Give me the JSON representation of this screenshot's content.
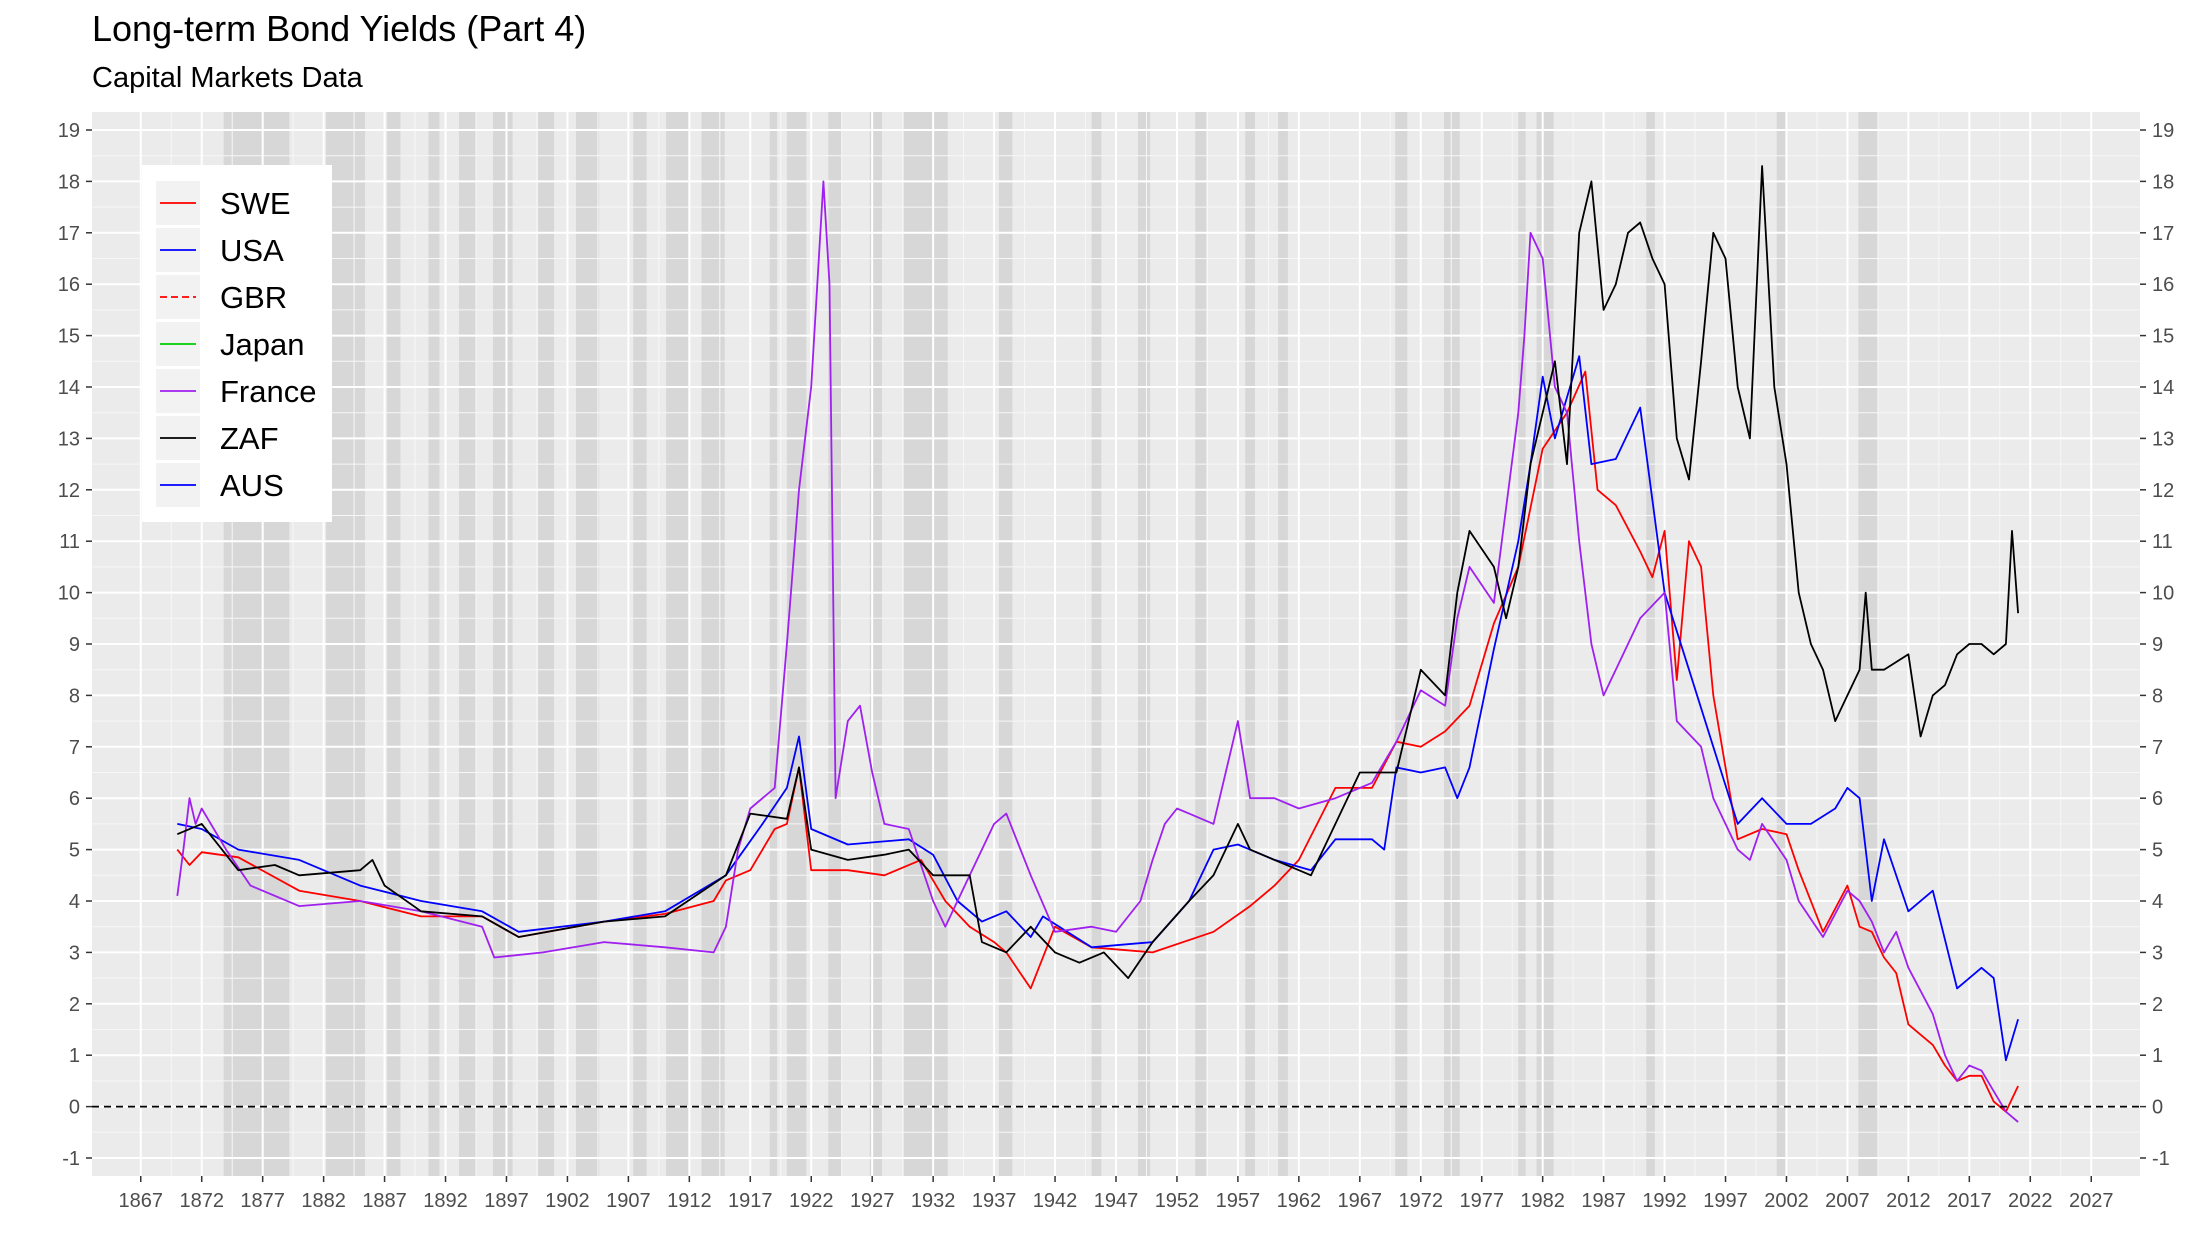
{
  "chart_data": {
    "type": "line",
    "title": "Long-term Bond Yields (Part 4)",
    "subtitle": "Capital Markets Data",
    "xlabel": "",
    "ylabel": "",
    "xlim": [
      1863,
      2031
    ],
    "ylim": [
      -1.35,
      19.35
    ],
    "x_ticks": [
      1867,
      1872,
      1877,
      1882,
      1887,
      1892,
      1897,
      1902,
      1907,
      1912,
      1917,
      1922,
      1927,
      1932,
      1937,
      1942,
      1947,
      1952,
      1957,
      1962,
      1967,
      1972,
      1977,
      1982,
      1987,
      1992,
      1997,
      2002,
      2007,
      2012,
      2017,
      2022,
      2027
    ],
    "y_ticks": [
      -1,
      0,
      1,
      2,
      3,
      4,
      5,
      6,
      7,
      8,
      9,
      10,
      11,
      12,
      13,
      14,
      15,
      16,
      17,
      18,
      19
    ],
    "y_axis_right": true,
    "grid": true,
    "legend_position": "top-left",
    "reference_line": {
      "y": 0,
      "style": "dashed",
      "color": "#000000"
    },
    "recession_bands": [
      [
        1873.8,
        1879.2
      ],
      [
        1882.2,
        1885.4
      ],
      [
        1887.2,
        1888.3
      ],
      [
        1890.6,
        1891.5
      ],
      [
        1893.1,
        1894.5
      ],
      [
        1895.9,
        1897.5
      ],
      [
        1899.6,
        1900.9
      ],
      [
        1902.7,
        1904.6
      ],
      [
        1907.4,
        1908.5
      ],
      [
        1910.1,
        1912.0
      ],
      [
        1913.0,
        1914.9
      ],
      [
        1918.6,
        1919.2
      ],
      [
        1920.0,
        1921.6
      ],
      [
        1923.4,
        1924.5
      ],
      [
        1926.8,
        1927.8
      ],
      [
        1929.6,
        1933.2
      ],
      [
        1937.4,
        1938.5
      ],
      [
        1945.0,
        1945.8
      ],
      [
        1948.8,
        1949.8
      ],
      [
        1953.5,
        1954.4
      ],
      [
        1957.6,
        1958.4
      ],
      [
        1960.3,
        1961.1
      ],
      [
        1969.9,
        1970.9
      ],
      [
        1973.9,
        1975.2
      ],
      [
        1980.0,
        1980.6
      ],
      [
        1981.5,
        1982.9
      ],
      [
        1990.5,
        1991.2
      ],
      [
        2001.2,
        2001.9
      ],
      [
        2007.9,
        2009.5
      ]
    ],
    "series": [
      {
        "name": "SWE",
        "color": "#ff0000",
        "dash": "solid",
        "x": [
          1870.0,
          1871.0,
          1872.0,
          1875.0,
          1880.0,
          1885.0,
          1890.0,
          1895.0,
          1898.0,
          1905.0,
          1910.0,
          1914.0,
          1915.0,
          1917.0,
          1918.0,
          1919.0,
          1920.0,
          1921.0,
          1922.0,
          1925.0,
          1928.0,
          1931.0,
          1933.0,
          1935.0,
          1937.0,
          1938.0,
          1940.0,
          1942.0,
          1945.0,
          1950.0,
          1955.0,
          1958.0,
          1960.0,
          1962.0,
          1965.0,
          1968.0,
          1970.0,
          1972.0,
          1974.0,
          1976.0,
          1978.0,
          1980.0,
          1982.0,
          1984.0,
          1985.5,
          1986.5,
          1988.0,
          1990.0,
          1991.0,
          1992.0,
          1993.0,
          1994.0,
          1995.0,
          1996.0,
          1998.0,
          2000.0,
          2002.0,
          2003.0,
          2005.0,
          2007.0,
          2008.0,
          2009.0,
          2010.0,
          2011.0,
          2012.0,
          2014.0,
          2015.0,
          2016.0,
          2017.0,
          2018.0,
          2019.0,
          2020.0,
          2021.0
        ],
        "y": [
          5.0,
          4.7,
          4.95,
          4.85,
          4.2,
          4.0,
          3.7,
          3.7,
          3.3,
          3.6,
          3.75,
          4.0,
          4.4,
          4.6,
          5.0,
          5.4,
          5.5,
          6.6,
          4.6,
          4.6,
          4.5,
          4.8,
          4.0,
          3.5,
          3.2,
          3.0,
          2.3,
          3.5,
          3.1,
          3.0,
          3.4,
          3.9,
          4.3,
          4.8,
          6.2,
          6.2,
          7.1,
          7.0,
          7.3,
          7.8,
          9.4,
          10.5,
          12.8,
          13.5,
          14.3,
          12.0,
          11.7,
          10.8,
          10.3,
          11.2,
          8.3,
          11.0,
          10.5,
          8.0,
          5.2,
          5.4,
          5.3,
          4.6,
          3.4,
          4.3,
          3.5,
          3.4,
          2.9,
          2.6,
          1.6,
          1.2,
          0.8,
          0.5,
          0.6,
          0.6,
          0.1,
          -0.1,
          0.4
        ]
      },
      {
        "name": "USA",
        "color": "#0000ff",
        "dash": "solid",
        "x": [
          1870.0,
          1872.0,
          1875.0,
          1880.0,
          1885.0,
          1890.0,
          1895.0,
          1898.0,
          1905.0,
          1910.0,
          1915.0,
          1918.0,
          1920.0,
          1921.0,
          1922.0,
          1925.0,
          1930.0,
          1932.0,
          1934.0,
          1936.0,
          1938.0,
          1940.0,
          1941.0,
          1945.0,
          1950.0,
          1953.0,
          1955.0,
          1957.0,
          1960.0,
          1963.0,
          1965.0,
          1968.0,
          1969.0,
          1970.0,
          1972.0,
          1974.0,
          1975.0,
          1976.0,
          1978.0,
          1980.0,
          1981.0,
          1982.0,
          1983.0,
          1984.0,
          1985.0,
          1986.0,
          1988.0,
          1990.0,
          1992.0,
          1994.0,
          1996.0,
          1998.0,
          2000.0,
          2002.0,
          2004.0,
          2006.0,
          2007.0,
          2008.0,
          2009.0,
          2010.0,
          2012.0,
          2014.0,
          2016.0,
          2018.0,
          2019.0,
          2020.0,
          2021.0
        ],
        "y": [
          5.5,
          5.4,
          5.0,
          4.8,
          4.3,
          4.0,
          3.8,
          3.4,
          3.6,
          3.8,
          4.5,
          5.5,
          6.2,
          7.2,
          5.4,
          5.1,
          5.2,
          4.9,
          4.0,
          3.6,
          3.8,
          3.3,
          3.7,
          3.1,
          3.2,
          4.0,
          5.0,
          5.1,
          4.8,
          4.6,
          5.2,
          5.2,
          5.0,
          6.6,
          6.5,
          6.6,
          6.0,
          6.6,
          8.9,
          11.0,
          12.5,
          14.2,
          13.0,
          13.8,
          14.6,
          12.5,
          12.6,
          13.6,
          10.0,
          8.5,
          7.0,
          5.5,
          6.0,
          5.5,
          5.5,
          5.8,
          6.2,
          6.0,
          4.0,
          5.2,
          3.8,
          4.2,
          2.3,
          2.7,
          2.5,
          0.9,
          1.7
        ]
      },
      {
        "name": "GBR",
        "color": "#ff0000",
        "dash": "dashed",
        "x": [],
        "y": []
      },
      {
        "name": "Japan",
        "color": "#00cd00",
        "dash": "solid",
        "x": [],
        "y": []
      },
      {
        "name": "France",
        "color": "#a020f0",
        "dash": "solid",
        "x": [
          1870.0,
          1870.5,
          1871.0,
          1871.5,
          1872.0,
          1874.0,
          1876.0,
          1880.0,
          1885.0,
          1890.0,
          1895.0,
          1896.0,
          1900.0,
          1905.0,
          1910.0,
          1914.0,
          1915.0,
          1916.0,
          1917.0,
          1918.0,
          1919.0,
          1920.0,
          1921.0,
          1922.0,
          1923.0,
          1923.5,
          1924.0,
          1925.0,
          1926.0,
          1927.0,
          1928.0,
          1930.0,
          1932.0,
          1933.0,
          1935.0,
          1937.0,
          1938.0,
          1940.0,
          1942.0,
          1945.0,
          1947.0,
          1949.0,
          1950.0,
          1951.0,
          1952.0,
          1953.0,
          1955.0,
          1956.0,
          1957.0,
          1958.0,
          1960.0,
          1962.0,
          1965.0,
          1968.0,
          1970.0,
          1972.0,
          1974.0,
          1975.0,
          1976.0,
          1978.0,
          1980.0,
          1980.5,
          1981.0,
          1982.0,
          1983.0,
          1984.0,
          1985.0,
          1986.0,
          1987.0,
          1988.0,
          1990.0,
          1992.0,
          1993.0,
          1995.0,
          1996.0,
          1998.0,
          1999.0,
          2000.0,
          2002.0,
          2003.0,
          2005.0,
          2007.0,
          2008.0,
          2009.0,
          2010.0,
          2011.0,
          2012.0,
          2014.0,
          2015.0,
          2016.0,
          2017.0,
          2018.0,
          2019.0,
          2020.0,
          2021.0
        ],
        "y": [
          4.1,
          5.0,
          6.0,
          5.5,
          5.8,
          5.0,
          4.3,
          3.9,
          4.0,
          3.8,
          3.5,
          2.9,
          3.0,
          3.2,
          3.1,
          3.0,
          3.5,
          5.0,
          5.8,
          6.0,
          6.2,
          9.0,
          12.0,
          14.0,
          18.0,
          16.0,
          6.0,
          7.5,
          7.8,
          6.5,
          5.5,
          5.4,
          4.0,
          3.5,
          4.5,
          5.5,
          5.7,
          4.5,
          3.4,
          3.5,
          3.4,
          4.0,
          4.8,
          5.5,
          5.8,
          5.7,
          5.5,
          6.5,
          7.5,
          6.0,
          6.0,
          5.8,
          6.0,
          6.3,
          7.1,
          8.1,
          7.8,
          9.5,
          10.5,
          9.8,
          13.5,
          15.0,
          17.0,
          16.5,
          14.0,
          13.5,
          11.0,
          9.0,
          8.0,
          8.5,
          9.5,
          10.0,
          7.5,
          7.0,
          6.0,
          5.0,
          4.8,
          5.5,
          4.8,
          4.0,
          3.3,
          4.2,
          4.0,
          3.6,
          3.0,
          3.4,
          2.7,
          1.8,
          1.0,
          0.5,
          0.8,
          0.7,
          0.3,
          -0.1,
          -0.3
        ]
      },
      {
        "name": "ZAF",
        "color": "#000000",
        "dash": "solid",
        "x": [
          1870.0,
          1872.0,
          1875.0,
          1878.0,
          1880.0,
          1885.0,
          1886.0,
          1887.0,
          1890.0,
          1895.0,
          1898.0,
          1905.0,
          1910.0,
          1915.0,
          1917.0,
          1920.0,
          1921.0,
          1922.0,
          1925.0,
          1928.0,
          1930.0,
          1932.0,
          1935.0,
          1936.0,
          1938.0,
          1940.0,
          1942.0,
          1944.0,
          1946.0,
          1948.0,
          1950.0,
          1953.0,
          1955.0,
          1957.0,
          1958.0,
          1960.0,
          1963.0,
          1965.0,
          1967.0,
          1970.0,
          1972.0,
          1974.0,
          1975.0,
          1976.0,
          1978.0,
          1979.0,
          1980.0,
          1981.0,
          1982.0,
          1983.0,
          1984.0,
          1985.0,
          1986.0,
          1987.0,
          1988.0,
          1989.0,
          1990.0,
          1991.0,
          1992.0,
          1993.0,
          1994.0,
          1995.0,
          1996.0,
          1997.0,
          1998.0,
          1999.0,
          2000.0,
          2001.0,
          2002.0,
          2003.0,
          2004.0,
          2005.0,
          2006.0,
          2007.0,
          2008.0,
          2008.5,
          2009.0,
          2010.0,
          2012.0,
          2013.0,
          2014.0,
          2015.0,
          2016.0,
          2017.0,
          2018.0,
          2019.0,
          2020.0,
          2020.5,
          2021.0
        ],
        "y": [
          5.3,
          5.5,
          4.6,
          4.7,
          4.5,
          4.6,
          4.8,
          4.3,
          3.8,
          3.7,
          3.3,
          3.6,
          3.7,
          4.5,
          5.7,
          5.6,
          6.6,
          5.0,
          4.8,
          4.9,
          5.0,
          4.5,
          4.5,
          3.2,
          3.0,
          3.5,
          3.0,
          2.8,
          3.0,
          2.5,
          3.2,
          4.0,
          4.5,
          5.5,
          5.0,
          4.8,
          4.5,
          5.5,
          6.5,
          6.5,
          8.5,
          8.0,
          10.0,
          11.2,
          10.5,
          9.5,
          10.5,
          12.5,
          13.5,
          14.5,
          12.5,
          17.0,
          18.0,
          15.5,
          16.0,
          17.0,
          17.2,
          16.5,
          16.0,
          13.0,
          12.2,
          14.5,
          17.0,
          16.5,
          14.0,
          13.0,
          18.3,
          14.0,
          12.5,
          10.0,
          9.0,
          8.5,
          7.5,
          8.0,
          8.5,
          10.0,
          8.5,
          8.5,
          8.8,
          7.2,
          8.0,
          8.2,
          8.8,
          9.0,
          9.0,
          8.8,
          9.0,
          11.2,
          9.6
        ]
      },
      {
        "name": "AUS",
        "color": "#0000ff",
        "dash": "solid",
        "x": [],
        "y": []
      }
    ]
  }
}
